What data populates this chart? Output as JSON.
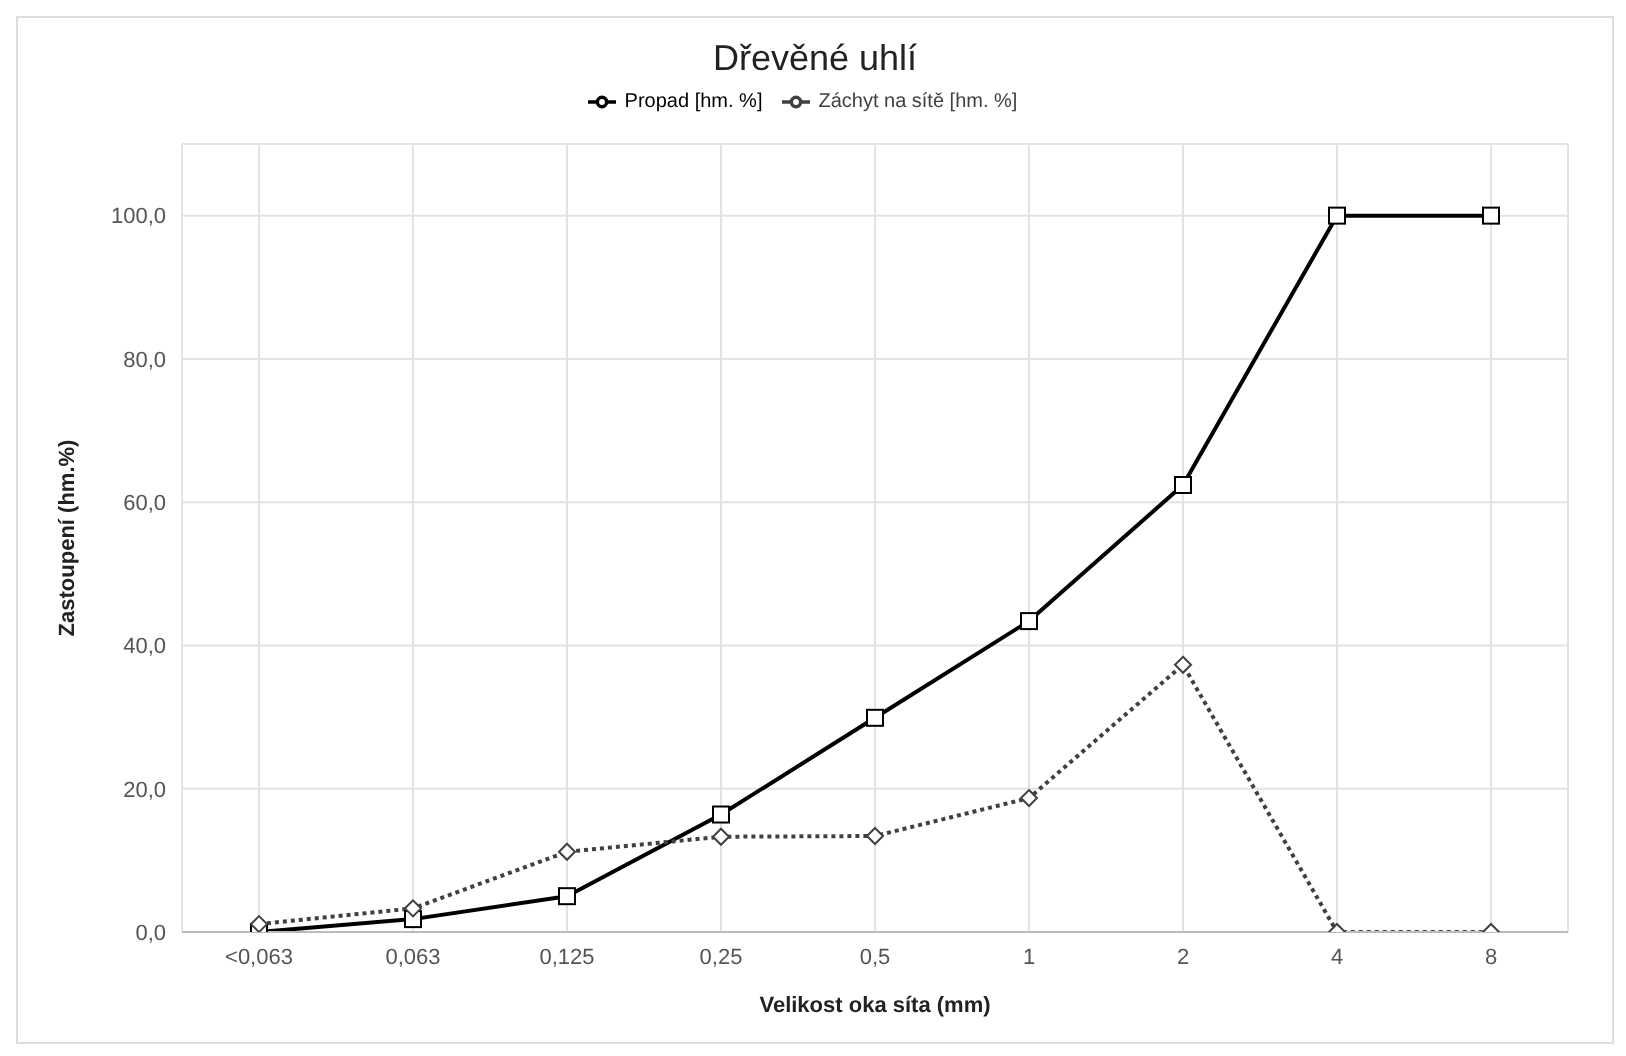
{
  "chart_data": {
    "type": "line",
    "title": "Dřevěné uhlí",
    "xlabel": "Velikost oka síta (mm)",
    "ylabel": "Zastoupení (hm.%)",
    "categories": [
      "<0,063",
      "0,063",
      "0,125",
      "0,25",
      "0,5",
      "1",
      "2",
      "4",
      "8"
    ],
    "series": [
      {
        "name": "Záchyt na sítě [hm. %]",
        "color": "#404040",
        "marker": "diamond",
        "line_style": "dotted",
        "values": [
          1.1,
          3.3,
          11.2,
          13.3,
          13.4,
          18.7,
          37.3,
          0,
          0
        ]
      },
      {
        "name": "Propad [hm. %]",
        "color": "#000000",
        "marker": "square",
        "line_style": "solid",
        "values": [
          0,
          1.8,
          5.0,
          16.4,
          29.9,
          43.4,
          62.4,
          100,
          100
        ]
      }
    ],
    "ylim": [
      0,
      110
    ],
    "yticks": [
      {
        "value": 0,
        "label": "0,0"
      },
      {
        "value": 20,
        "label": "20,0"
      },
      {
        "value": 40,
        "label": "40,0"
      },
      {
        "value": 60,
        "label": "60,0"
      },
      {
        "value": 80,
        "label": "80,0"
      },
      {
        "value": 100,
        "label": "100,0"
      }
    ],
    "grid": true,
    "legend": "top"
  }
}
